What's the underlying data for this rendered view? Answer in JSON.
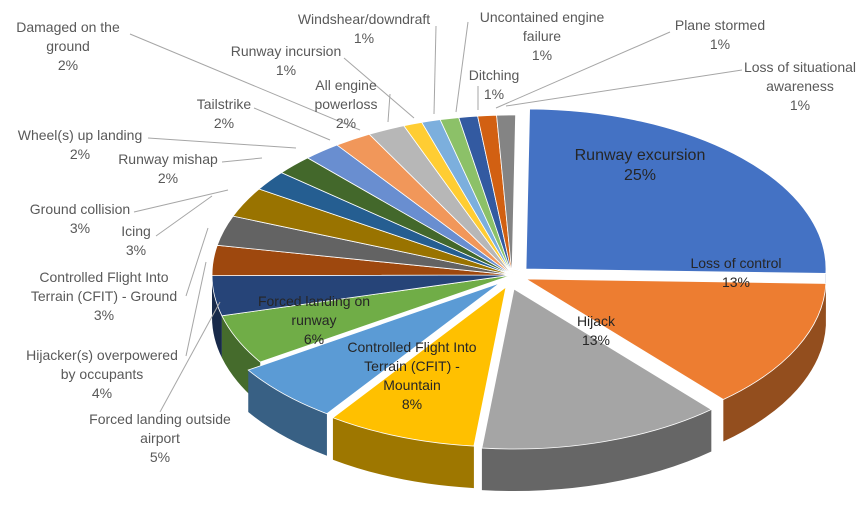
{
  "chart_data": {
    "type": "pie",
    "title": "",
    "slices": [
      {
        "name": "Runway excursion",
        "label": "25%",
        "value": 25,
        "color": "#4472c4"
      },
      {
        "name": "Loss of control",
        "label": "13%",
        "value": 13,
        "color": "#ed7d31"
      },
      {
        "name": "Hijack",
        "label": "13%",
        "value": 13,
        "color": "#a5a5a5"
      },
      {
        "name": "Controlled Flight Into Terrain (CFIT) - Mountain",
        "label": "8%",
        "value": 8,
        "color": "#ffc000"
      },
      {
        "name": "Forced landing on runway",
        "label": "6%",
        "value": 6,
        "color": "#5b9bd5"
      },
      {
        "name": "Forced landing outside airport",
        "label": "5%",
        "value": 5,
        "color": "#70ad47"
      },
      {
        "name": "Hijacker(s) overpowered by occupants",
        "label": "4%",
        "value": 4,
        "color": "#264478"
      },
      {
        "name": "Controlled Flight Into Terrain (CFIT) - Ground",
        "label": "3%",
        "value": 3,
        "color": "#9e480e"
      },
      {
        "name": "Icing",
        "label": "3%",
        "value": 3,
        "color": "#636363"
      },
      {
        "name": "Ground collision",
        "label": "3%",
        "value": 3,
        "color": "#997300"
      },
      {
        "name": "Runway mishap",
        "label": "2%",
        "value": 2,
        "color": "#255e91"
      },
      {
        "name": "Wheel(s) up landing",
        "label": "2%",
        "value": 2,
        "color": "#43682b"
      },
      {
        "name": "Tailstrike",
        "label": "2%",
        "value": 2,
        "color": "#698ed0"
      },
      {
        "name": "Damaged on the ground",
        "label": "2%",
        "value": 2,
        "color": "#f1975a"
      },
      {
        "name": "All engine powerloss",
        "label": "2%",
        "value": 2,
        "color": "#b7b7b7"
      },
      {
        "name": "Runway incursion",
        "label": "1%",
        "value": 1,
        "color": "#ffcd33"
      },
      {
        "name": "Windshear/downdraft",
        "label": "1%",
        "value": 1,
        "color": "#7cafdd"
      },
      {
        "name": "Uncontained engine failure",
        "label": "1%",
        "value": 1,
        "color": "#8cc168"
      },
      {
        "name": "Ditching",
        "label": "1%",
        "value": 1,
        "color": "#335aa1"
      },
      {
        "name": "Plane stormed",
        "label": "1%",
        "value": 1,
        "color": "#d26012"
      },
      {
        "name": "Loss of situational awareness",
        "label": "1%",
        "value": 1,
        "color": "#848484"
      }
    ]
  }
}
